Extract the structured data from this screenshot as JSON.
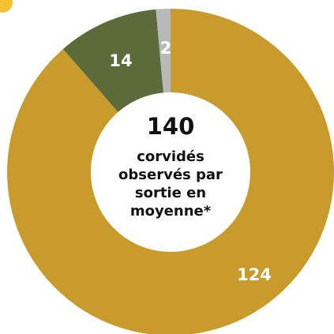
{
  "chart_data": {
    "type": "donut",
    "categories": [
      null,
      null,
      null
    ],
    "values": [
      124,
      14,
      2
    ],
    "colors": [
      "#c99b2c",
      "#5d6b3b",
      "#b9b9b9"
    ],
    "total": 140,
    "center_lines": [
      "corvidés",
      "observés par",
      "sortie en",
      "moyenne*"
    ]
  }
}
